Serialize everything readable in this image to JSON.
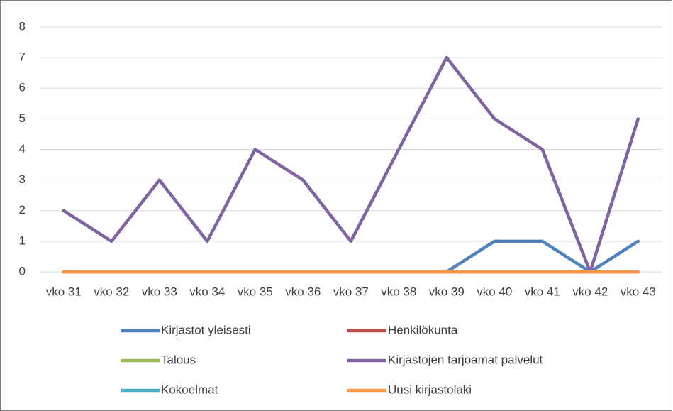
{
  "chart_data": {
    "type": "line",
    "categories": [
      "vko 31",
      "vko 32",
      "vko 33",
      "vko 34",
      "vko 35",
      "vko 36",
      "vko 37",
      "vko 38",
      "vko 39",
      "vko 40",
      "vko 41",
      "vko 42",
      "vko 43"
    ],
    "series": [
      {
        "name": "Kirjastot yleisesti",
        "color": "#4f81bd",
        "values": [
          0,
          0,
          0,
          0,
          0,
          0,
          0,
          0,
          0,
          1,
          1,
          0,
          1
        ]
      },
      {
        "name": "Henkilökunta",
        "color": "#c0504d",
        "values": [
          0,
          0,
          0,
          0,
          0,
          0,
          0,
          0,
          0,
          0,
          0,
          0,
          0
        ]
      },
      {
        "name": "Talous",
        "color": "#9bbb59",
        "values": [
          0,
          0,
          0,
          0,
          0,
          0,
          0,
          0,
          0,
          0,
          0,
          0,
          0
        ]
      },
      {
        "name": "Kirjastojen tarjoamat palvelut",
        "color": "#8064a2",
        "values": [
          2,
          1,
          3,
          1,
          4,
          3,
          1,
          4,
          7,
          5,
          4,
          0,
          5
        ]
      },
      {
        "name": "Kokoelmat",
        "color": "#4bacc6",
        "values": [
          0,
          0,
          0,
          0,
          0,
          0,
          0,
          0,
          0,
          0,
          0,
          0,
          0
        ]
      },
      {
        "name": "Uusi kirjastolaki",
        "color": "#f79646",
        "values": [
          0,
          0,
          0,
          0,
          0,
          0,
          0,
          0,
          0,
          0,
          0,
          0,
          0
        ]
      }
    ],
    "ylim": [
      0,
      8
    ],
    "yticks": [
      0,
      1,
      2,
      3,
      4,
      5,
      6,
      7,
      8
    ],
    "grid": true,
    "legend": "bottom"
  }
}
